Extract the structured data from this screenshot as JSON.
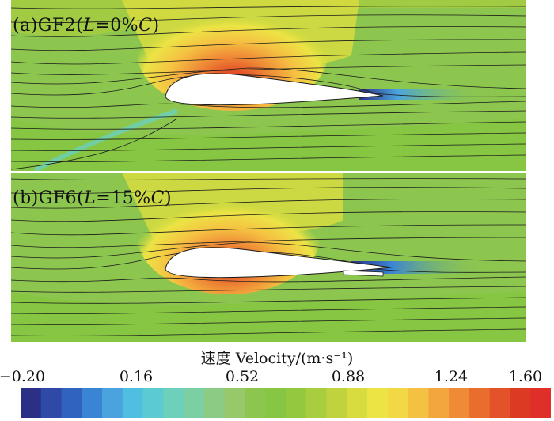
{
  "panels": [
    {
      "id": "a",
      "label_prefix": "(a)GF2(",
      "label_var": "L",
      "label_mid": "=0%",
      "label_chord": "C",
      "label_suffix": ")"
    },
    {
      "id": "b",
      "label_prefix": "(b)GF6(",
      "label_var": "L",
      "label_mid": "=15%",
      "label_chord": "C",
      "label_suffix": ")"
    }
  ],
  "legend": {
    "title": "速度 Velocity/(m·s⁻¹)",
    "ticks": [
      "−0.20",
      "0.16",
      "0.52",
      "0.88",
      "1.24",
      "1.60"
    ],
    "range": [
      -0.2,
      1.6
    ],
    "colors": [
      "#2b2f86",
      "#2f4aa6",
      "#2f63bf",
      "#3a84d4",
      "#4aa3de",
      "#4ebfe0",
      "#5ccbd1",
      "#6cd0bb",
      "#7ccfa2",
      "#8ccb84",
      "#97c96a",
      "#8cc64f",
      "#86c643",
      "#94c83f",
      "#a8cd3e",
      "#c0d33e",
      "#d8dc3f",
      "#ece445",
      "#f3d845",
      "#f5c142",
      "#f3a63d",
      "#ef8a36",
      "#e96e2e",
      "#e35228",
      "#dd3a24",
      "#e02f28"
    ]
  }
}
